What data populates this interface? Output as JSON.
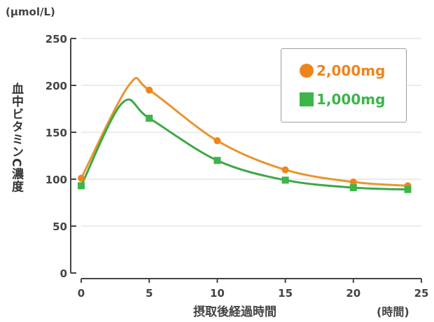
{
  "chart_data": {
    "type": "line",
    "y_unit": "(µmol/L)",
    "ylabel": "血中ビタミンC濃度",
    "xlabel": "摂取後経過時間",
    "x_unit": "(時間)",
    "xlim": [
      0,
      25
    ],
    "ylim": [
      0,
      250
    ],
    "x_ticks": [
      "0",
      "5",
      "10",
      "15",
      "20",
      "25"
    ],
    "y_ticks": [
      "0",
      "50",
      "100",
      "150",
      "200",
      "250"
    ],
    "grid": "horizontal",
    "legend_position": "top-right",
    "x": [
      0,
      5,
      10,
      15,
      20,
      24
    ],
    "series": [
      {
        "name": "2,000mg",
        "color": "#f0841c",
        "line_color": "#e8962e",
        "marker": "circle",
        "values": [
          101,
          195,
          141,
          110,
          97,
          93
        ],
        "peak": [
          3.5,
          200
        ]
      },
      {
        "name": "1,000mg",
        "color": "#3cb54a",
        "line_color": "#3ca847",
        "marker": "square",
        "values": [
          93,
          165,
          120,
          99,
          91,
          89
        ],
        "peak": [
          3,
          181
        ]
      }
    ]
  }
}
